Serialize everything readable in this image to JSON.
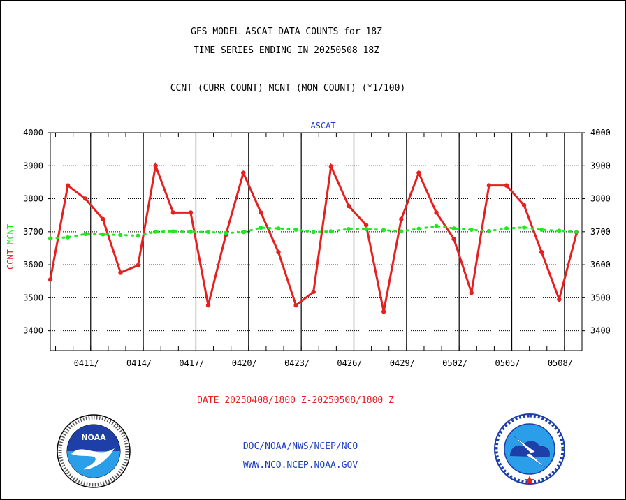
{
  "chart_data": {
    "type": "line",
    "title": "GFS MODEL ASCAT DATA COUNTS for 18Z",
    "subtitle": "TIME SERIES ENDING IN 20250508 18Z",
    "description_line": "CCNT (CURR COUNT) MCNT (MON COUNT) (*1/100)",
    "panel_label": "ASCAT",
    "ylabel_left": {
      "ccnt": "CCNT",
      "mcnt": "MCNT"
    },
    "xlabel": "DATE 20250408/1800 Z-20250508/1800 Z",
    "ylim": [
      3340,
      4000
    ],
    "yticks": [
      3400,
      3500,
      3600,
      3700,
      3800,
      3900,
      4000
    ],
    "xlim": [
      0,
      30.3
    ],
    "x_start": "20250408",
    "xticks": [
      {
        "x": 2.3,
        "label": "0411/"
      },
      {
        "x": 5.3,
        "label": "0414/"
      },
      {
        "x": 8.3,
        "label": "0417/"
      },
      {
        "x": 11.3,
        "label": "0420/"
      },
      {
        "x": 14.3,
        "label": "0423/"
      },
      {
        "x": 17.3,
        "label": "0426/"
      },
      {
        "x": 20.3,
        "label": "0429/"
      },
      {
        "x": 23.3,
        "label": "0502/"
      },
      {
        "x": 26.3,
        "label": "0505/"
      },
      {
        "x": 29.3,
        "label": "0508/"
      }
    ],
    "series": [
      {
        "name": "CCNT",
        "color": "#e52020",
        "style": "solid-markers",
        "x": [
          0,
          1,
          2,
          3,
          4,
          5,
          6,
          7,
          8,
          9,
          10,
          11,
          12,
          13,
          14,
          15,
          16,
          17,
          18,
          19,
          20,
          21,
          22,
          23,
          24,
          25,
          26,
          27,
          28,
          29,
          30
        ],
        "values": [
          3555,
          3840,
          3800,
          3738,
          3576,
          3598,
          3900,
          3758,
          3758,
          3477,
          3690,
          3878,
          3758,
          3638,
          3477,
          3518,
          3898,
          3778,
          3720,
          3458,
          3738,
          3878,
          3758,
          3678,
          3515,
          3840,
          3840,
          3780,
          3638,
          3495,
          3698
        ]
      },
      {
        "name": "MCNT",
        "color": "#22e622",
        "style": "dotted",
        "x": [
          0,
          1,
          2,
          3,
          4,
          5,
          6,
          7,
          8,
          9,
          10,
          11,
          12,
          13,
          14,
          15,
          16,
          17,
          18,
          19,
          20,
          21,
          22,
          23,
          24,
          25,
          26,
          27,
          28,
          29,
          30
        ],
        "values": [
          3680,
          3683,
          3693,
          3692,
          3690,
          3688,
          3700,
          3701,
          3700,
          3699,
          3696,
          3699,
          3712,
          3710,
          3706,
          3699,
          3701,
          3708,
          3708,
          3705,
          3701,
          3709,
          3717,
          3710,
          3706,
          3702,
          3710,
          3713,
          3706,
          3703,
          3700
        ]
      }
    ]
  },
  "footer": {
    "org_path": "DOC/NOAA/NWS/NCEP/NCO",
    "website": "WWW.NCO.NCEP.NOAA.GOV"
  },
  "logos": {
    "noaa": "noaa-logo",
    "nws": "national-weather-service-logo"
  },
  "colors": {
    "ccnt": "#e52020",
    "mcnt": "#22e622",
    "footer_text": "#1f3fc0",
    "panel_label": "#1f3fc0"
  }
}
